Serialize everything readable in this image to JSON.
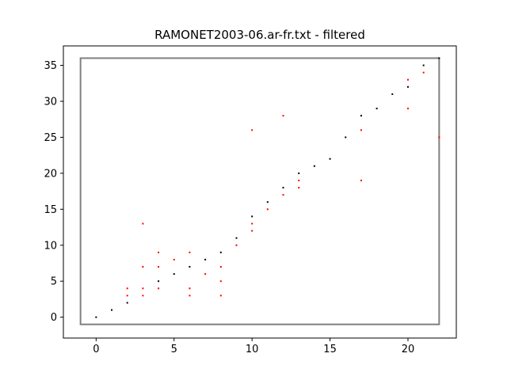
{
  "chart_data": {
    "type": "scatter",
    "title": "RAMONET2003-06.ar-fr.txt - filtered",
    "xlabel": "",
    "ylabel": "",
    "xlim": [
      -2.1,
      23.1
    ],
    "ylim": [
      -2.9,
      37.7
    ],
    "xticks": [
      0,
      5,
      10,
      15,
      20
    ],
    "yticks": [
      0,
      5,
      10,
      15,
      20,
      25,
      30,
      35
    ],
    "grid": false,
    "legend": "none",
    "box": {
      "x": [
        -1,
        22
      ],
      "y": [
        -1,
        36
      ],
      "color": "#808080"
    },
    "series": [
      {
        "color": "#000000",
        "points": [
          [
            0,
            0
          ],
          [
            1,
            1
          ],
          [
            2,
            2
          ],
          [
            4,
            5
          ],
          [
            5,
            6
          ],
          [
            6,
            7
          ],
          [
            7,
            8
          ],
          [
            8,
            9
          ],
          [
            9,
            11
          ],
          [
            10,
            14
          ],
          [
            11,
            16
          ],
          [
            12,
            18
          ],
          [
            13,
            20
          ],
          [
            14,
            21
          ],
          [
            15,
            22
          ],
          [
            16,
            25
          ],
          [
            17,
            28
          ],
          [
            18,
            29
          ],
          [
            19,
            31
          ],
          [
            20,
            32
          ],
          [
            21,
            35
          ],
          [
            22,
            36
          ]
        ]
      },
      {
        "color": "#ff0000",
        "points": [
          [
            2,
            3
          ],
          [
            2,
            4
          ],
          [
            3,
            3
          ],
          [
            3,
            4
          ],
          [
            3,
            7
          ],
          [
            3,
            13
          ],
          [
            4,
            4
          ],
          [
            4,
            7
          ],
          [
            4,
            9
          ],
          [
            5,
            8
          ],
          [
            6,
            3
          ],
          [
            6,
            4
          ],
          [
            6,
            9
          ],
          [
            7,
            6
          ],
          [
            8,
            3
          ],
          [
            8,
            5
          ],
          [
            8,
            7
          ],
          [
            9,
            10
          ],
          [
            10,
            12
          ],
          [
            10,
            13
          ],
          [
            10,
            26
          ],
          [
            11,
            15
          ],
          [
            12,
            17
          ],
          [
            12,
            28
          ],
          [
            13,
            18
          ],
          [
            13,
            19
          ],
          [
            17,
            19
          ],
          [
            17,
            26
          ],
          [
            20,
            29
          ],
          [
            20,
            33
          ],
          [
            21,
            34
          ],
          [
            22,
            25
          ]
        ]
      }
    ]
  }
}
